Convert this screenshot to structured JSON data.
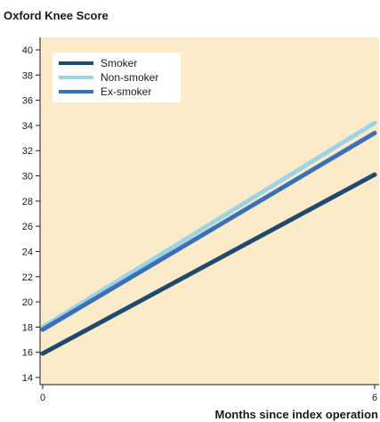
{
  "chart_data": {
    "type": "line",
    "title": "",
    "ylabel": "Oxford Knee Score",
    "xlabel": "Months since index operation",
    "x": [
      0,
      6
    ],
    "xticks": [
      0,
      6
    ],
    "yticks": [
      14,
      16,
      18,
      20,
      22,
      24,
      26,
      28,
      30,
      32,
      34,
      36,
      38,
      40
    ],
    "xlim": [
      0,
      6
    ],
    "ylim": [
      14,
      40
    ],
    "grid": false,
    "legend_position": "top-left",
    "plot_background": "#fcebc9",
    "series": [
      {
        "name": "Smoker",
        "values": [
          15.9,
          30.1
        ],
        "color": "#1f4a6e"
      },
      {
        "name": "Non-smoker",
        "values": [
          18.0,
          34.2
        ],
        "color": "#9ed3e6"
      },
      {
        "name": "Ex-smoker",
        "values": [
          17.8,
          33.4
        ],
        "color": "#3b6fb6"
      }
    ]
  }
}
